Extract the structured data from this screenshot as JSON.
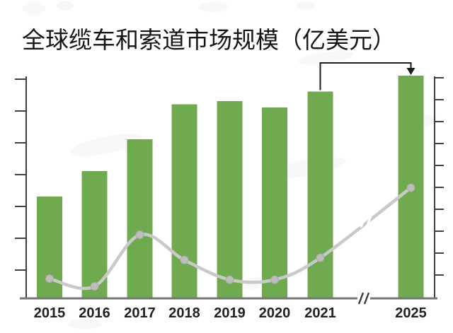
{
  "title": "全球缆车和索道市场规模（亿美元）",
  "unit": "亿美元",
  "chart_data": {
    "type": "bar",
    "title": "全球缆车和索道市场规模（亿美元）",
    "categories": [
      "2015",
      "2016",
      "2017",
      "2018",
      "2019",
      "2020",
      "2021",
      "2025"
    ],
    "series": [
      {
        "name": "market-size-bars",
        "type": "bar",
        "axis": "left",
        "unit": "亿美元",
        "values": [
          32,
          40,
          50,
          61,
          62,
          60,
          65,
          70
        ]
      },
      {
        "name": "trend-line",
        "type": "line",
        "axis": "right",
        "values": [
          0.9,
          0.55,
          2.9,
          1.75,
          0.85,
          0.85,
          1.85,
          5.05
        ]
      }
    ],
    "xlabel": "",
    "ylabel": "",
    "left_axis": {
      "min": 0,
      "max": 70,
      "tick_interval": 10,
      "tick_labels_visible": false
    },
    "right_axis": {
      "min": 0,
      "max": 10,
      "tick_interval": 1,
      "tick_labels_visible": false
    },
    "x_axis_break_between": [
      "2021",
      "2025"
    ],
    "line_break_between": [
      "2021",
      "2025"
    ],
    "annotations": [
      {
        "type": "arrow",
        "from_category": "2021",
        "to_category": "2025"
      }
    ],
    "legend": "none",
    "grid": false,
    "colors": {
      "bar": "#6fab4e",
      "line": "#c9c9c9",
      "marker_fill": "#bdbdbd",
      "marker_edge": "#aaaaaa",
      "side_axis": "#3f3f3f",
      "baseline": "#757575",
      "x_label": "#212121",
      "title": "#151515",
      "arrow": "#1c1c1c",
      "background": "#ffffff",
      "watermark": "#9a9a9a"
    }
  }
}
